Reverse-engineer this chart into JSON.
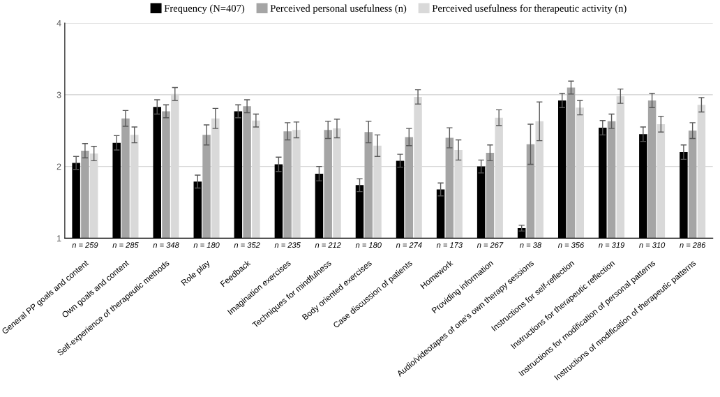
{
  "chart_data": {
    "type": "bar",
    "categories": [
      "General PP goals and content",
      "Own goals and content",
      "Self-experience of therapeutic methods",
      "Role play",
      "Feedback",
      "Imagination exercises",
      "Techniques for mindfulness",
      "Body oriented exercises",
      "Case discussion of patients",
      "Homework",
      "Providing information",
      "Audio/videotapes of one's own therapy sessions",
      "Instructions for self-reflection",
      "Instructions for therapeutic reflection",
      "Instructions for modification of personal patterns",
      "Instructions of modification of therapeutic patterns"
    ],
    "series": [
      {
        "name": "Frequency (N=407)",
        "color": "#000000",
        "values": [
          2.05,
          2.33,
          2.83,
          1.79,
          2.77,
          2.03,
          1.9,
          1.74,
          2.08,
          1.68,
          2.0,
          1.14,
          2.92,
          2.54,
          2.45,
          2.2
        ],
        "errors": [
          0.09,
          0.1,
          0.1,
          0.09,
          0.09,
          0.1,
          0.1,
          0.09,
          0.09,
          0.09,
          0.09,
          0.04,
          0.1,
          0.1,
          0.1,
          0.1
        ]
      },
      {
        "name": "Perceived personal usefulness (n)",
        "color": "#a5a5a5",
        "values": [
          2.22,
          2.67,
          2.77,
          2.44,
          2.84,
          2.49,
          2.51,
          2.48,
          2.41,
          2.4,
          2.19,
          2.31,
          3.1,
          2.63,
          2.92,
          2.5
        ],
        "errors": [
          0.1,
          0.11,
          0.09,
          0.14,
          0.09,
          0.12,
          0.12,
          0.15,
          0.12,
          0.14,
          0.11,
          0.28,
          0.09,
          0.1,
          0.1,
          0.11
        ]
      },
      {
        "name": "Perceived usefulness for therapeutic activity (n)",
        "color": "#d9d9d9",
        "values": [
          2.18,
          2.44,
          3.01,
          2.67,
          2.64,
          2.51,
          2.53,
          2.29,
          2.97,
          2.23,
          2.68,
          2.63,
          2.82,
          2.98,
          2.59,
          2.86
        ],
        "errors": [
          0.1,
          0.11,
          0.09,
          0.14,
          0.09,
          0.11,
          0.13,
          0.15,
          0.1,
          0.14,
          0.11,
          0.27,
          0.1,
          0.1,
          0.11,
          0.1
        ]
      }
    ],
    "annotations": [
      "n = 259",
      "n = 285",
      "n = 348",
      "n = 180",
      "n = 352",
      "n = 235",
      "n = 212",
      "n = 180",
      "n = 274",
      "n = 173",
      "n = 267",
      "n = 38",
      "n = 356",
      "n = 319",
      "n = 310",
      "n = 286"
    ],
    "ylim": [
      1,
      4
    ],
    "yticks": [
      1,
      2,
      3,
      4
    ],
    "grid": "y",
    "legend": "top"
  }
}
